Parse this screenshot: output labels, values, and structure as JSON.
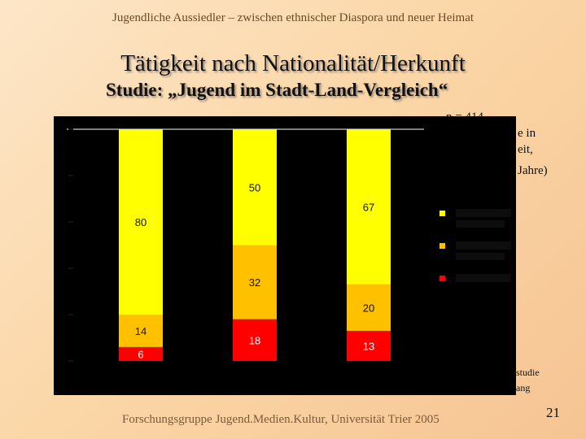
{
  "header": {
    "title": "Jugendliche Aussiedler – zwischen ethnischer Diaspora und neuer Heimat"
  },
  "slide": {
    "title": "Tätigkeit nach Nationalität/Herkunft",
    "subtitle": "Studie: „Jugend im Stadt-Land-Vergleich“",
    "note_line1": "n = 414",
    "note_line2": "e in",
    "note_line3": "eit,",
    "note_line4": "Jahre)",
    "source_line1": "studie",
    "source_line2": "ang"
  },
  "footer": {
    "text": "Forschungsgruppe Jugend.Medien.Kultur, Universität Trier 2005",
    "page_number": "21"
  },
  "colors": {
    "yellow": "#ffff00",
    "orange": "#ffc000",
    "red": "#ff0000",
    "chart_background": "#000000"
  },
  "chart_data": {
    "type": "bar",
    "stacked": true,
    "categories": [
      "",
      "",
      ""
    ],
    "series": [
      {
        "values": [
          6,
          18,
          13
        ],
        "color": "#ff0000"
      },
      {
        "values": [
          14,
          32,
          20
        ],
        "color": "#ffc000"
      },
      {
        "values": [
          80,
          50,
          67
        ],
        "color": "#ffff00"
      }
    ],
    "ylim": [
      0,
      100
    ],
    "legend": "right",
    "data_labels": true
  }
}
